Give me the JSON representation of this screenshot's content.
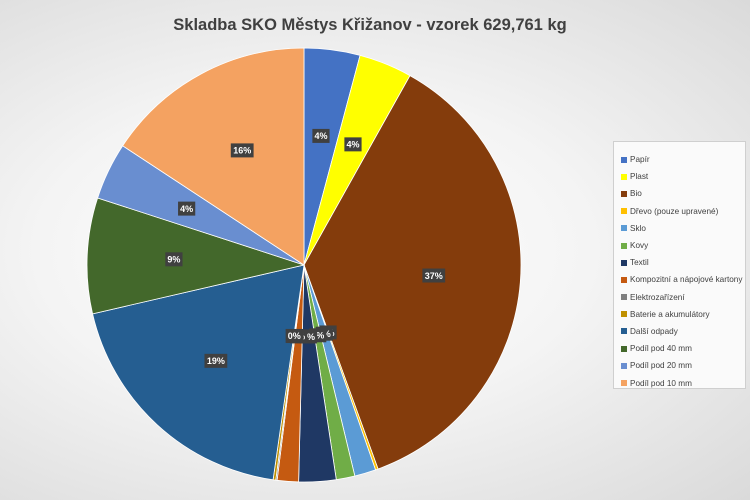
{
  "chart_data": {
    "type": "pie",
    "title": "Skladba SKO Městys Křižanov - vzorek 629,761 kg",
    "categories": [
      "Papír",
      "Plast",
      "Bio",
      "Dřevo (pouze upravené)",
      "Sklo",
      "Kovy",
      "Textil",
      "Kompozitní a nápojové kartony",
      "Elektrozařízení",
      "Baterie a akumulátory",
      "Další odpady",
      "Podíl pod 40 mm",
      "Podíl pod 20 mm",
      "Podíl pod 10 mm"
    ],
    "values": [
      4.2,
      4.0,
      36.7,
      0.2,
      1.6,
      1.4,
      2.8,
      1.6,
      0.1,
      0.2,
      19.3,
      8.7,
      4.3,
      15.9
    ],
    "data_labels": [
      "4%",
      "4%",
      "37%",
      "0%",
      "2%",
      "1%",
      "3%",
      "2%",
      "0%",
      "0%",
      "19%",
      "9%",
      "4%",
      "16%"
    ],
    "colors": [
      "#4472c4",
      "#ffff00",
      "#843c0c",
      "#ffc000",
      "#5b9bd5",
      "#70ad47",
      "#1f3864",
      "#c55a11",
      "#7f7f7f",
      "#bf9000",
      "#255e91",
      "#43682b",
      "#698ed0",
      "#f4a261"
    ],
    "legend_position": "right"
  }
}
